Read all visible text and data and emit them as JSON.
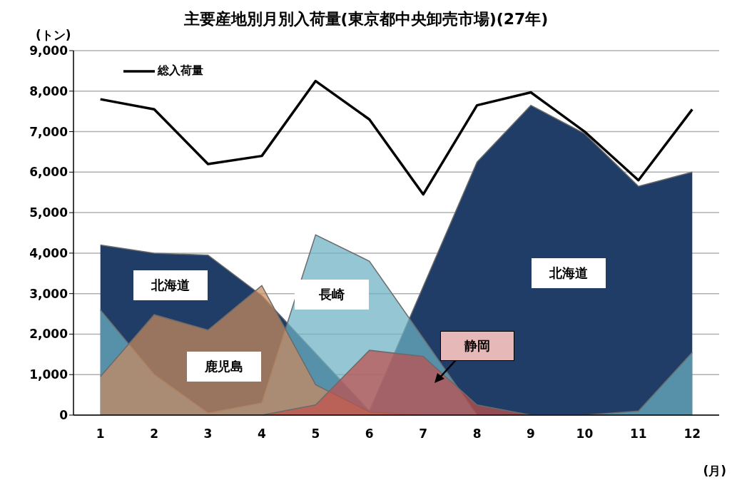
{
  "chart_data": {
    "type": "area",
    "title": "主要産地別月別入荷量(東京都中央卸売市場)(27年)",
    "ylabel": "(トン)",
    "xlabel": "(月)",
    "x": [
      1,
      2,
      3,
      4,
      5,
      6,
      7,
      8,
      9,
      10,
      11,
      12
    ],
    "series": [
      {
        "name": "北海道",
        "color": "#1f3d66",
        "values": [
          4200,
          4000,
          3950,
          2950,
          null,
          100,
          null,
          6250,
          7650,
          6950,
          5650,
          6000
        ]
      },
      {
        "name": "長崎",
        "color": "#6cb0c3",
        "values": [
          2600,
          1000,
          50,
          300,
          4450,
          3800,
          null,
          0,
          0,
          0,
          100,
          1550
        ]
      },
      {
        "name": "鹿児島",
        "color": "#c98a5e",
        "values": [
          950,
          2480,
          2100,
          3200,
          750,
          80,
          0,
          0,
          0,
          0,
          0,
          0
        ]
      },
      {
        "name": "静岡",
        "color": "#c0504d",
        "values": [
          0,
          0,
          0,
          0,
          250,
          1600,
          1450,
          250,
          0,
          0,
          0,
          0
        ]
      },
      {
        "type": "line",
        "name": "総入荷量",
        "color": "#000000",
        "values": [
          7800,
          7550,
          6200,
          6400,
          8250,
          7300,
          5450,
          7650,
          7970,
          7000,
          5800,
          7550
        ]
      }
    ],
    "xlim": [
      0.5,
      12.5
    ],
    "xticks": [
      1,
      2,
      3,
      4,
      5,
      6,
      7,
      8,
      9,
      10,
      11,
      12
    ],
    "ylim": [
      0,
      9000
    ],
    "yticks": [
      0,
      {
        "value": 1000,
        "label": "1,000"
      },
      {
        "value": 2000,
        "label": "2,000"
      },
      {
        "value": 3000,
        "label": "3,000"
      },
      {
        "value": 4000,
        "label": "4,000"
      },
      {
        "value": 5000,
        "label": "5,000"
      },
      {
        "value": 6000,
        "label": "6,000"
      },
      {
        "value": 7000,
        "label": "7,000"
      },
      {
        "value": 8000,
        "label": "8,000"
      },
      {
        "value": 9000,
        "label": "9,000"
      }
    ],
    "grid": "y",
    "legend": "top left",
    "marker": "none",
    "line_style": "solid"
  }
}
